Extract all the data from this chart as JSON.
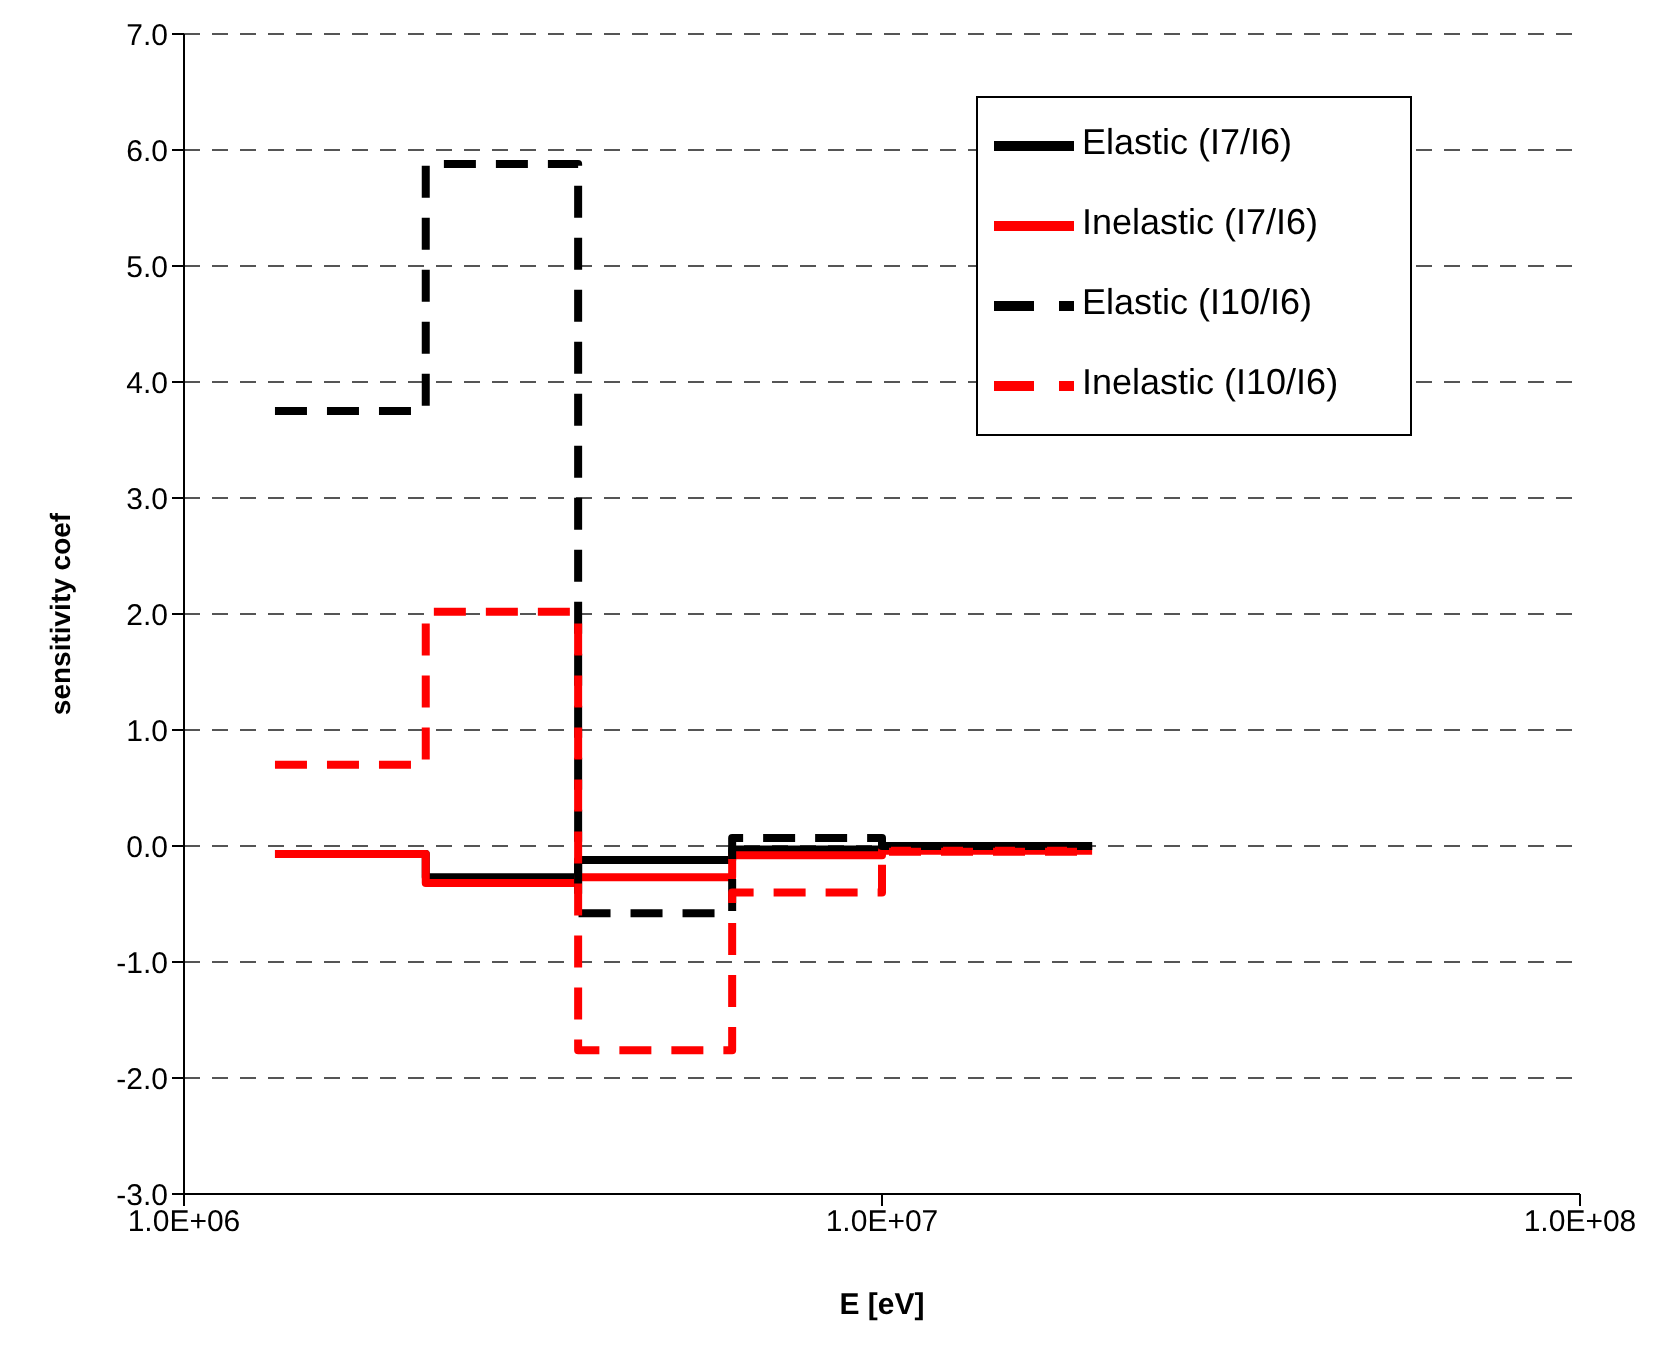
{
  "chart_data": {
    "type": "step",
    "xlabel": "E [eV]",
    "ylabel": "sensitivity coef",
    "log": "x",
    "x": [
      1350000,
      2220000,
      3670000,
      6100000,
      10000000,
      20000000
    ],
    "series": [
      {
        "name": "Elastic (I7/I6)",
        "color": "#000000",
        "line_style": "solid",
        "values": [
          -0.07,
          -0.27,
          -0.12,
          -0.03,
          0.0,
          0.0
        ]
      },
      {
        "name": "Inelastic (I7/I6)",
        "color": "#ff0000",
        "line_style": "solid",
        "values": [
          -0.07,
          -0.32,
          -0.27,
          -0.08,
          -0.04,
          -0.04
        ]
      },
      {
        "name": "Elastic (I10/I6)",
        "color": "#000000",
        "line_style": "dashed",
        "values": [
          3.75,
          5.88,
          -0.58,
          0.07,
          0.0,
          0.0
        ]
      },
      {
        "name": "Inelastic (I10/I6)",
        "color": "#ff0000",
        "line_style": "dashed",
        "values": [
          0.7,
          2.02,
          -1.76,
          -0.4,
          -0.05,
          -0.05
        ]
      }
    ],
    "xlim": [
      1000000,
      100000000
    ],
    "xticks": [
      {
        "value": 1000000,
        "label": "1.0E+06"
      },
      {
        "value": 10000000,
        "label": "1.0E+07"
      },
      {
        "value": 100000000,
        "label": "1.0E+08"
      }
    ],
    "ylim": [
      -3,
      7
    ],
    "yticks": [
      {
        "value": -3,
        "label": "-3.0"
      },
      {
        "value": -2,
        "label": "-2.0"
      },
      {
        "value": -1,
        "label": "-1.0"
      },
      {
        "value": 0,
        "label": "0.0"
      },
      {
        "value": 1,
        "label": "1.0"
      },
      {
        "value": 2,
        "label": "2.0"
      },
      {
        "value": 3,
        "label": "3.0"
      },
      {
        "value": 4,
        "label": "4.0"
      },
      {
        "value": 5,
        "label": "5.0"
      },
      {
        "value": 6,
        "label": "6.0"
      },
      {
        "value": 7,
        "label": "7.0"
      }
    ],
    "grid": "y",
    "legend": "top right",
    "marker": "none"
  }
}
